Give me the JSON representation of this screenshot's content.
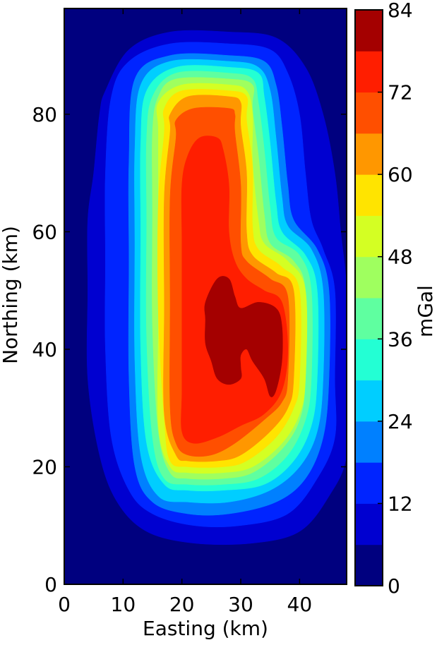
{
  "chart_data": {
    "type": "heatmap",
    "subtype": "filled-contour",
    "title": "",
    "xlabel": "Easting (km)",
    "ylabel": "Northing (km)",
    "xlim": [
      0,
      48
    ],
    "ylim": [
      0,
      98
    ],
    "xticks": [
      "0",
      "10",
      "20",
      "30",
      "40"
    ],
    "yticks": [
      "0",
      "20",
      "40",
      "60",
      "80"
    ],
    "colorbar": {
      "label": "mGal",
      "range": [
        0,
        84
      ],
      "ticks": [
        "0",
        "12",
        "24",
        "36",
        "48",
        "60",
        "72",
        "84"
      ],
      "levels": [
        0,
        6,
        12,
        18,
        24,
        30,
        36,
        42,
        48,
        54,
        60,
        66,
        72,
        78,
        84
      ],
      "colors": [
        "#00007f",
        "#0000d0",
        "#0024ff",
        "#0080ff",
        "#00ceff",
        "#23ffd4",
        "#5fffa0",
        "#9fff5f",
        "#d4ff23",
        "#ffe400",
        "#ff9700",
        "#ff4f00",
        "#ff1e00",
        "#a40000"
      ]
    },
    "anomaly": {
      "description_values": "gravity anomaly peaks near easting 25–37 km, northing 33–52 km",
      "peak_mGal": 84,
      "background_mGal": 0
    },
    "contours": [
      {
        "level": 6,
        "points": [
          [
            6,
            80
          ],
          [
            7,
            84
          ],
          [
            11,
            91
          ],
          [
            18,
            94
          ],
          [
            28,
            94
          ],
          [
            36,
            93
          ],
          [
            41,
            88
          ],
          [
            44,
            80
          ],
          [
            46,
            70
          ],
          [
            47,
            60
          ],
          [
            48,
            50
          ],
          [
            48,
            35
          ],
          [
            48,
            22
          ],
          [
            45,
            15
          ],
          [
            40,
            9
          ],
          [
            32,
            7
          ],
          [
            22,
            7
          ],
          [
            14,
            9
          ],
          [
            9,
            14
          ],
          [
            6,
            22
          ],
          [
            4,
            35
          ],
          [
            4,
            50
          ],
          [
            4,
            62
          ],
          [
            5,
            70
          ]
        ]
      },
      {
        "level": 12,
        "points": [
          [
            8,
            83
          ],
          [
            11,
            89
          ],
          [
            18,
            92
          ],
          [
            28,
            92
          ],
          [
            35,
            91
          ],
          [
            38,
            87
          ],
          [
            40,
            80
          ],
          [
            41,
            70
          ],
          [
            42,
            62
          ],
          [
            44,
            57
          ],
          [
            46,
            50
          ],
          [
            46,
            35
          ],
          [
            46,
            25
          ],
          [
            43,
            18
          ],
          [
            38,
            12
          ],
          [
            30,
            10
          ],
          [
            22,
            10
          ],
          [
            15,
            12
          ],
          [
            11,
            16
          ],
          [
            8,
            25
          ],
          [
            7,
            40
          ],
          [
            7,
            55
          ],
          [
            7,
            70
          ]
        ]
      },
      {
        "level": 18,
        "points": [
          [
            12,
            86
          ],
          [
            18,
            90
          ],
          [
            28,
            90
          ],
          [
            34,
            89
          ],
          [
            36,
            85
          ],
          [
            37,
            78
          ],
          [
            38,
            68
          ],
          [
            39,
            62
          ],
          [
            43,
            57
          ],
          [
            45,
            50
          ],
          [
            45,
            35
          ],
          [
            44,
            25
          ],
          [
            41,
            18
          ],
          [
            36,
            14
          ],
          [
            28,
            12
          ],
          [
            21,
            12
          ],
          [
            15,
            14
          ],
          [
            12,
            20
          ],
          [
            11,
            35
          ],
          [
            11,
            55
          ],
          [
            11,
            72
          ]
        ]
      },
      {
        "level": 24,
        "points": [
          [
            13,
            85
          ],
          [
            18,
            89
          ],
          [
            28,
            89
          ],
          [
            33,
            88
          ],
          [
            35,
            84
          ],
          [
            36,
            76
          ],
          [
            37,
            66
          ],
          [
            38,
            61
          ],
          [
            42,
            57
          ],
          [
            44,
            50
          ],
          [
            44,
            35
          ],
          [
            43,
            26
          ],
          [
            40,
            20
          ],
          [
            35,
            16
          ],
          [
            28,
            14
          ],
          [
            21,
            14
          ],
          [
            16,
            15
          ],
          [
            13,
            22
          ],
          [
            12,
            38
          ],
          [
            12,
            58
          ],
          [
            12,
            74
          ]
        ]
      },
      {
        "level": 30,
        "points": [
          [
            14,
            84
          ],
          [
            19,
            88
          ],
          [
            28,
            88
          ],
          [
            33,
            87
          ],
          [
            34,
            83
          ],
          [
            35,
            75
          ],
          [
            36,
            65
          ],
          [
            37,
            60
          ],
          [
            41,
            56
          ],
          [
            43,
            50
          ],
          [
            43,
            35
          ],
          [
            42,
            27
          ],
          [
            39,
            21
          ],
          [
            34,
            17
          ],
          [
            27,
            16
          ],
          [
            21,
            16
          ],
          [
            17,
            17
          ],
          [
            14,
            24
          ],
          [
            13,
            40
          ],
          [
            13,
            60
          ],
          [
            13,
            75
          ]
        ]
      },
      {
        "level": 36,
        "points": [
          [
            15,
            83
          ],
          [
            19,
            87
          ],
          [
            28,
            87
          ],
          [
            32,
            86
          ],
          [
            33,
            82
          ],
          [
            34,
            74
          ],
          [
            35,
            64
          ],
          [
            36,
            59
          ],
          [
            40,
            56
          ],
          [
            42,
            50
          ],
          [
            42,
            35
          ],
          [
            41,
            28
          ],
          [
            38,
            22
          ],
          [
            33,
            18
          ],
          [
            27,
            17
          ],
          [
            21,
            17
          ],
          [
            17,
            18
          ],
          [
            15,
            25
          ],
          [
            14,
            42
          ],
          [
            14,
            62
          ],
          [
            14,
            76
          ]
        ]
      },
      {
        "level": 42,
        "points": [
          [
            16,
            83
          ],
          [
            19,
            86
          ],
          [
            28,
            86
          ],
          [
            32,
            85
          ],
          [
            32,
            81
          ],
          [
            33,
            73
          ],
          [
            34,
            63
          ],
          [
            35,
            58
          ],
          [
            39,
            55
          ],
          [
            41,
            50
          ],
          [
            41,
            35
          ],
          [
            40,
            28
          ],
          [
            37,
            23
          ],
          [
            32,
            19
          ],
          [
            27,
            18
          ],
          [
            21,
            18
          ],
          [
            18,
            19
          ],
          [
            16,
            26
          ],
          [
            15,
            44
          ],
          [
            15,
            63
          ],
          [
            15,
            77
          ]
        ]
      },
      {
        "level": 48,
        "points": [
          [
            16,
            82
          ],
          [
            20,
            85
          ],
          [
            28,
            85
          ],
          [
            31,
            84
          ],
          [
            32,
            80
          ],
          [
            32,
            72
          ],
          [
            33,
            62
          ],
          [
            34,
            58
          ],
          [
            38,
            55
          ],
          [
            41,
            50
          ],
          [
            41,
            35
          ],
          [
            40,
            29
          ],
          [
            37,
            24
          ],
          [
            32,
            20
          ],
          [
            27,
            19
          ],
          [
            21,
            19
          ],
          [
            18,
            20
          ],
          [
            16,
            27
          ],
          [
            16,
            45
          ],
          [
            16,
            64
          ],
          [
            16,
            77
          ]
        ]
      },
      {
        "level": 54,
        "points": [
          [
            17,
            81
          ],
          [
            20,
            84
          ],
          [
            28,
            84
          ],
          [
            31,
            83
          ],
          [
            31,
            79
          ],
          [
            32,
            71
          ],
          [
            32,
            61
          ],
          [
            33,
            57
          ],
          [
            37,
            54
          ],
          [
            40,
            50
          ],
          [
            40,
            35
          ],
          [
            39,
            30
          ],
          [
            36,
            25
          ],
          [
            31,
            21
          ],
          [
            27,
            20
          ],
          [
            21,
            20
          ],
          [
            18,
            21
          ],
          [
            17,
            28
          ],
          [
            16,
            46
          ],
          [
            16,
            65
          ],
          [
            17,
            77
          ]
        ]
      },
      {
        "level": 60,
        "points": [
          [
            18,
            80
          ],
          [
            21,
            83
          ],
          [
            28,
            83
          ],
          [
            30,
            82
          ],
          [
            30,
            78
          ],
          [
            31,
            70
          ],
          [
            31,
            60
          ],
          [
            32,
            56
          ],
          [
            36,
            53
          ],
          [
            39,
            50
          ],
          [
            39,
            35
          ],
          [
            38,
            30
          ],
          [
            35,
            26
          ],
          [
            30,
            22
          ],
          [
            26,
            21
          ],
          [
            21,
            21
          ],
          [
            19,
            22
          ],
          [
            17,
            29
          ],
          [
            17,
            47
          ],
          [
            17,
            66
          ],
          [
            18,
            77
          ]
        ]
      },
      {
        "level": 66,
        "points": [
          [
            19,
            79
          ],
          [
            22,
            81
          ],
          [
            28,
            81
          ],
          [
            29,
            80
          ],
          [
            29,
            77
          ],
          [
            30,
            68
          ],
          [
            30,
            58
          ],
          [
            31,
            55
          ],
          [
            35,
            52
          ],
          [
            38,
            49
          ],
          [
            38,
            35
          ],
          [
            37,
            31
          ],
          [
            34,
            28
          ],
          [
            29,
            24
          ],
          [
            25,
            22
          ],
          [
            21,
            22
          ],
          [
            19,
            24
          ],
          [
            18,
            30
          ],
          [
            18,
            48
          ],
          [
            18,
            66
          ],
          [
            19,
            76
          ]
        ]
      },
      {
        "level": 72,
        "points": [
          [
            21,
            73
          ],
          [
            23,
            76
          ],
          [
            26,
            76
          ],
          [
            27,
            74
          ],
          [
            28,
            68
          ],
          [
            28,
            60
          ],
          [
            29,
            55
          ],
          [
            31,
            52
          ],
          [
            34,
            50
          ],
          [
            37,
            48
          ],
          [
            38,
            40
          ],
          [
            37,
            33
          ],
          [
            34,
            29
          ],
          [
            30,
            27
          ],
          [
            26,
            25
          ],
          [
            22,
            24
          ],
          [
            20,
            26
          ],
          [
            20,
            33
          ],
          [
            20,
            45
          ],
          [
            20,
            58
          ],
          [
            20,
            68
          ]
        ]
      },
      {
        "level": 78,
        "points": [
          [
            24,
            48
          ],
          [
            26,
            52
          ],
          [
            28,
            52
          ],
          [
            29,
            49
          ],
          [
            30,
            47
          ],
          [
            33,
            48
          ],
          [
            36,
            47
          ],
          [
            37,
            44
          ],
          [
            37,
            38
          ],
          [
            36,
            33
          ],
          [
            35,
            32
          ],
          [
            34,
            35
          ],
          [
            32,
            38
          ],
          [
            31,
            40
          ],
          [
            30,
            39
          ],
          [
            30,
            37
          ],
          [
            30,
            35
          ],
          [
            28,
            34
          ],
          [
            26,
            35
          ],
          [
            25,
            38
          ],
          [
            24,
            41
          ],
          [
            24,
            45
          ]
        ]
      }
    ]
  }
}
